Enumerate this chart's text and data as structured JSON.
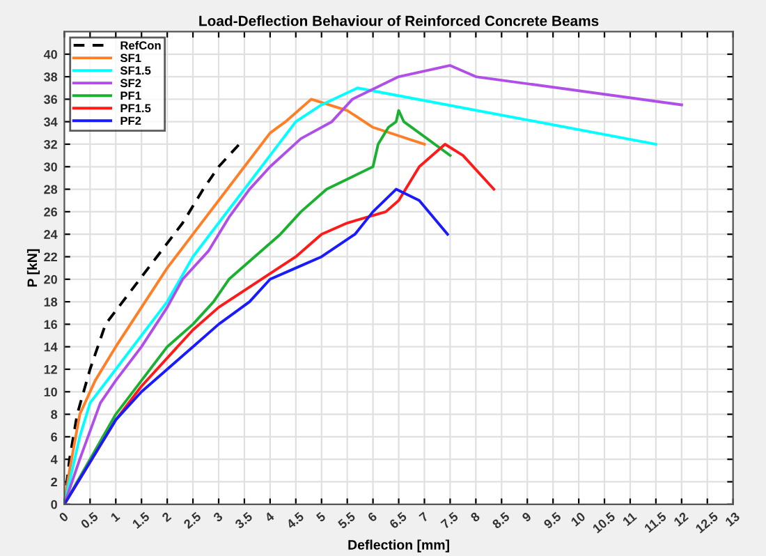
{
  "chart_data": {
    "type": "line",
    "title": "Load-Deflection Behaviour of Reinforced Concrete Beams",
    "xlabel": "Deflection [mm]",
    "ylabel": "P [kN]",
    "xlim": [
      0,
      13
    ],
    "xticks": [
      0,
      {
        "value": 0.5,
        "label": "0.5"
      },
      1,
      {
        "value": 1.5,
        "label": "1.5"
      },
      2,
      {
        "value": 2.5,
        "label": "2.5"
      },
      3,
      {
        "value": 3.5,
        "label": "3.5"
      },
      4,
      {
        "value": 4.5,
        "label": "4.5"
      },
      5,
      {
        "value": 5.5,
        "label": "5.5"
      },
      6,
      {
        "value": 6.5,
        "label": "6.5"
      },
      7,
      {
        "value": 7.5,
        "label": "7.5"
      },
      8,
      {
        "value": 8.5,
        "label": "8.5"
      },
      9,
      {
        "value": 9.5,
        "label": "9.5"
      },
      10,
      {
        "value": 10.5,
        "label": "10.5"
      },
      11,
      {
        "value": 11.5,
        "label": "11.5"
      },
      12,
      {
        "value": 12.5,
        "label": "12.5"
      },
      13
    ],
    "ylim": [
      0,
      42
    ],
    "yticks": [
      0,
      2,
      4,
      6,
      8,
      10,
      12,
      14,
      16,
      18,
      20,
      22,
      24,
      26,
      28,
      30,
      32,
      34,
      36,
      38,
      40
    ],
    "grid": true,
    "legend": "top left",
    "series": [
      {
        "name": "RefCon",
        "color": "#000000",
        "line_style": "dashed",
        "x": [
          0,
          0.1,
          0.25,
          0.5,
          0.8,
          1.3,
          1.8,
          2.3,
          2.7,
          3.0,
          3.4
        ],
        "values": [
          0,
          4,
          8,
          12,
          16,
          19,
          22,
          25,
          28,
          30,
          32
        ]
      },
      {
        "name": "SF1",
        "color": "#ff7f27",
        "x": [
          0,
          0.1,
          0.3,
          0.6,
          1.0,
          1.5,
          2.0,
          2.5,
          3.0,
          3.5,
          4.0,
          4.3,
          4.8,
          5.5,
          6.0,
          7.0
        ],
        "values": [
          0,
          3,
          8,
          11,
          14,
          17.5,
          21,
          24,
          27,
          30,
          33,
          34,
          36,
          35,
          33.5,
          32
        ]
      },
      {
        "name": "SF1.5",
        "color": "#00ffff",
        "x": [
          0,
          0.1,
          0.3,
          0.5,
          1.0,
          1.5,
          2.0,
          2.5,
          3.0,
          3.5,
          4.0,
          4.5,
          5.0,
          5.7,
          11.5
        ],
        "values": [
          0,
          2,
          6,
          9,
          12,
          15,
          18,
          22,
          25,
          28,
          31,
          34,
          35.5,
          37,
          32
        ]
      },
      {
        "name": "SF2",
        "color": "#b04fe8",
        "x": [
          0,
          0.3,
          0.7,
          1.0,
          1.5,
          2.0,
          2.3,
          2.8,
          3.2,
          3.6,
          4.0,
          4.6,
          5.2,
          5.6,
          6.5,
          7.5,
          8.0,
          12.0
        ],
        "values": [
          0,
          4,
          9,
          11,
          14,
          17.5,
          20,
          22.5,
          25.5,
          28,
          30,
          32.5,
          34,
          36,
          38,
          39,
          38,
          35.5
        ]
      },
      {
        "name": "PF1",
        "color": "#1cb033",
        "x": [
          0,
          0.5,
          1.0,
          1.5,
          2.0,
          2.5,
          2.9,
          3.2,
          3.7,
          4.2,
          4.6,
          5.1,
          6.0,
          6.1,
          6.3,
          6.45,
          6.5,
          6.6,
          7.5
        ],
        "values": [
          0,
          4,
          8,
          11,
          14,
          16,
          18,
          20,
          22,
          24,
          26,
          28,
          30,
          32,
          33.5,
          34,
          35,
          34,
          31
        ]
      },
      {
        "name": "PF1.5",
        "color": "#ff1a1a",
        "x": [
          0,
          1.0,
          1.5,
          2.0,
          2.5,
          3.0,
          3.5,
          4.0,
          4.5,
          5.0,
          5.5,
          6.25,
          6.5,
          6.9,
          7.4,
          7.75,
          8.35
        ],
        "values": [
          0,
          7.5,
          10.5,
          13,
          15.5,
          17.5,
          19,
          20.5,
          22,
          24,
          25,
          26,
          27,
          30,
          32,
          31,
          28
        ]
      },
      {
        "name": "PF2",
        "color": "#1a1aff",
        "x": [
          0,
          1.0,
          1.5,
          2.0,
          2.5,
          3.0,
          3.6,
          4.0,
          4.5,
          5.0,
          5.65,
          6.0,
          6.45,
          6.9,
          7.45
        ],
        "values": [
          0,
          7.5,
          10,
          12,
          14,
          16,
          18,
          20,
          21,
          22,
          24,
          26,
          28,
          27,
          24
        ]
      }
    ]
  }
}
